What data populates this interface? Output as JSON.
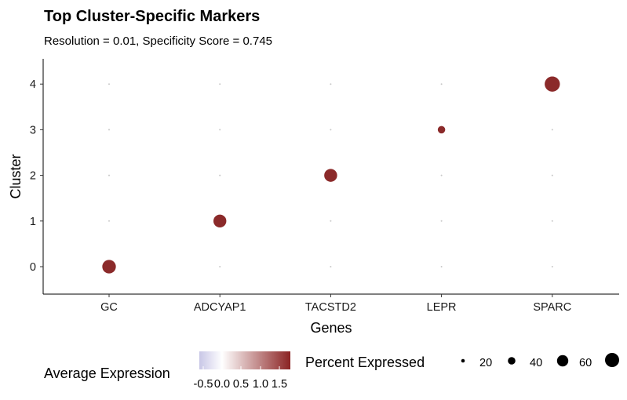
{
  "chart_data": {
    "type": "scatter",
    "title": "Top Cluster-Specific Markers",
    "subtitle": "Resolution = 0.01, Specificity Score = 0.745",
    "xlabel": "Genes",
    "ylabel": "Cluster",
    "x_categories": [
      "GC",
      "ADCYAP1",
      "TACSTD2",
      "LEPR",
      "SPARC"
    ],
    "y_ticks": [
      "0",
      "1",
      "2",
      "3",
      "4"
    ],
    "grid": false,
    "points": [
      {
        "gene": "GC",
        "cluster": 0,
        "avg_expression": 1.5,
        "pct_expressed": 40
      },
      {
        "gene": "ADCYAP1",
        "cluster": 1,
        "avg_expression": 1.5,
        "pct_expressed": 36
      },
      {
        "gene": "TACSTD2",
        "cluster": 2,
        "avg_expression": 1.5,
        "pct_expressed": 36
      },
      {
        "gene": "LEPR",
        "cluster": 3,
        "avg_expression": 1.5,
        "pct_expressed": 12
      },
      {
        "gene": "SPARC",
        "cluster": 4,
        "avg_expression": 1.5,
        "pct_expressed": 50
      }
    ],
    "color_legend": {
      "title": "Average Expression",
      "labels": [
        "-0.5",
        "0.0",
        "0.5",
        "1.0",
        "1.5"
      ],
      "low_color": "#c8c6e6",
      "mid_color": "#ffffff",
      "high_color": "#8b2323"
    },
    "size_legend": {
      "title": "Percent Expressed",
      "labels": [
        "20",
        "40",
        "60"
      ],
      "values": [
        20,
        40,
        60
      ]
    },
    "dot_color": "#8b2a2a"
  }
}
